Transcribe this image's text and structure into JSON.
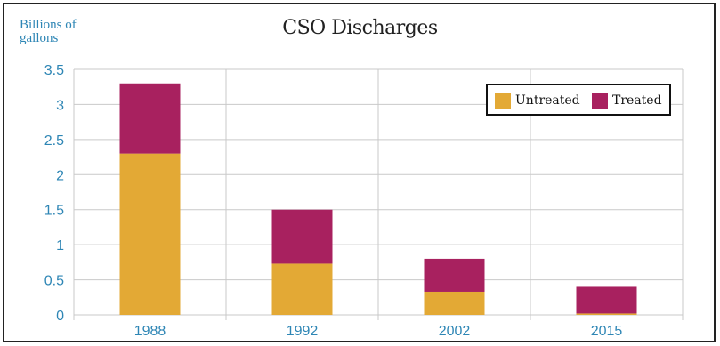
{
  "chart_data": {
    "type": "bar",
    "stacked": true,
    "title": "CSO Discharges",
    "ylabel_lines": [
      "Billions of",
      "gallons"
    ],
    "xlabel": "",
    "categories": [
      "1988",
      "1992",
      "2002",
      "2015"
    ],
    "series": [
      {
        "name": "Untreated",
        "color": "#e3a935",
        "values": [
          2.3,
          0.73,
          0.33,
          0.02
        ]
      },
      {
        "name": "Treated",
        "color": "#a8215f",
        "values": [
          1.0,
          0.77,
          0.47,
          0.38
        ]
      }
    ],
    "ylim": [
      0,
      3.5
    ],
    "yticks": [
      "0",
      "0.5",
      "1",
      "1.5",
      "2",
      "2.5",
      "3",
      "3.5"
    ],
    "grid": true,
    "legend_position": "top-right"
  }
}
